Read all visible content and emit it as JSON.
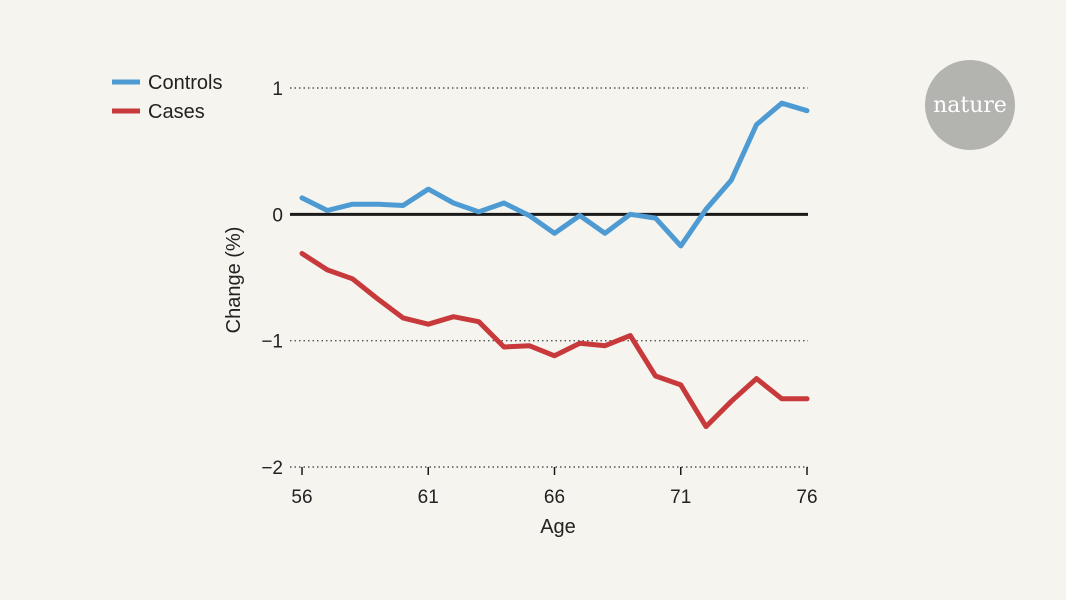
{
  "brand": {
    "label": "nature",
    "color": "#b3b3b0"
  },
  "colors": {
    "background": "#f6f4ee",
    "controls": "#4e9bd4",
    "cases": "#c8393c",
    "zero_line": "#1a1a1a",
    "grid": "#555555"
  },
  "chart_data": {
    "type": "line",
    "xlabel": "Age",
    "ylabel": "Change (%)",
    "xlim": [
      56,
      76
    ],
    "ylim": [
      -2,
      1
    ],
    "x_ticks": [
      {
        "value": 56,
        "label": "56"
      },
      {
        "value": 61,
        "label": "61"
      },
      {
        "value": 66,
        "label": "66"
      },
      {
        "value": 71,
        "label": "71"
      },
      {
        "value": 76,
        "label": "76"
      }
    ],
    "y_ticks": [
      {
        "value": 1,
        "label": "1"
      },
      {
        "value": 0,
        "label": "0"
      },
      {
        "value": -1,
        "label": "−1"
      },
      {
        "value": -2,
        "label": "−2"
      }
    ],
    "grid": "dotted horizontal lines at 1, -1 and -2; solid reference line at 0",
    "legend_position": "top-left",
    "x": [
      56,
      57,
      58,
      59,
      60,
      61,
      62,
      63,
      64,
      65,
      66,
      67,
      68,
      69,
      70,
      71,
      72,
      73,
      74,
      75,
      76
    ],
    "series": [
      {
        "name": "Controls",
        "color": "#4e9bd4",
        "values": [
          0.13,
          0.03,
          0.08,
          0.08,
          0.07,
          0.2,
          0.09,
          0.02,
          0.09,
          -0.01,
          -0.15,
          -0.01,
          -0.15,
          0.0,
          -0.03,
          -0.25,
          0.04,
          0.27,
          0.71,
          0.88,
          0.82
        ]
      },
      {
        "name": "Cases",
        "color": "#c8393c",
        "values": [
          -0.31,
          -0.44,
          -0.51,
          -0.67,
          -0.82,
          -0.87,
          -0.81,
          -0.85,
          -1.05,
          -1.04,
          -1.12,
          -1.02,
          -1.04,
          -0.96,
          -1.28,
          -1.35,
          -1.68,
          -1.48,
          -1.3,
          -1.46,
          -1.46
        ]
      }
    ]
  }
}
